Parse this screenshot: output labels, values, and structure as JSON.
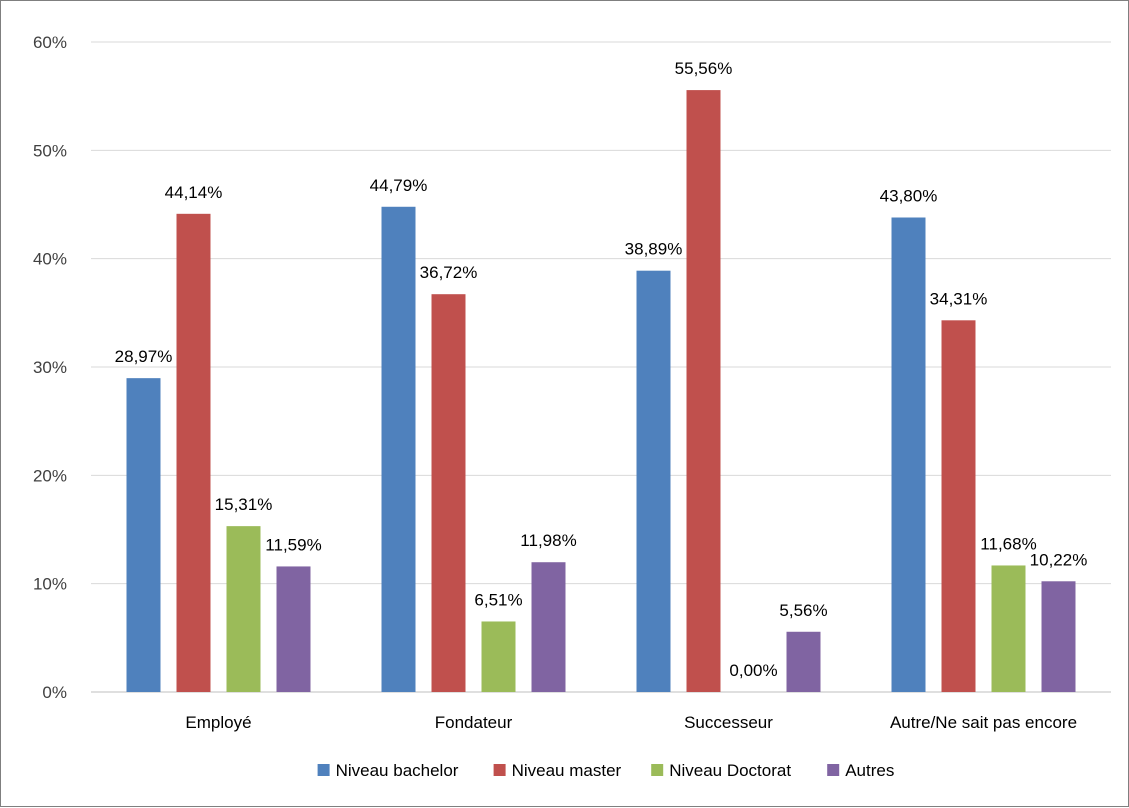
{
  "chart_data": {
    "type": "bar",
    "categories": [
      "Employé",
      "Fondateur",
      "Successeur",
      "Autre/Ne sait pas encore"
    ],
    "series": [
      {
        "name": "Niveau bachelor",
        "color": "#4f81bd",
        "values": [
          28.97,
          44.79,
          38.89,
          43.8
        ],
        "labels": [
          "28,97%",
          "44,79%",
          "38,89%",
          "43,80%"
        ]
      },
      {
        "name": "Niveau master",
        "color": "#c0504d",
        "values": [
          44.14,
          36.72,
          55.56,
          34.31
        ],
        "labels": [
          "44,14%",
          "36,72%",
          "55,56%",
          "34,31%"
        ]
      },
      {
        "name": "Niveau Doctorat",
        "color": "#9bbb59",
        "values": [
          15.31,
          6.51,
          0.0,
          11.68
        ],
        "labels": [
          "15,31%",
          "6,51%",
          "0,00%",
          "11,68%"
        ]
      },
      {
        "name": "Autres",
        "color": "#8064a2",
        "values": [
          11.59,
          11.98,
          5.56,
          10.22
        ],
        "labels": [
          "11,59%",
          "11,98%",
          "5,56%",
          "10,22%"
        ]
      }
    ],
    "ylim": [
      0,
      60
    ],
    "yticks": [
      0,
      10,
      20,
      30,
      40,
      50,
      60
    ],
    "ytick_labels": [
      "0%",
      "10%",
      "20%",
      "30%",
      "40%",
      "50%",
      "60%"
    ],
    "grid": true,
    "legend_position": "bottom",
    "title": "",
    "xlabel": "",
    "ylabel": ""
  }
}
